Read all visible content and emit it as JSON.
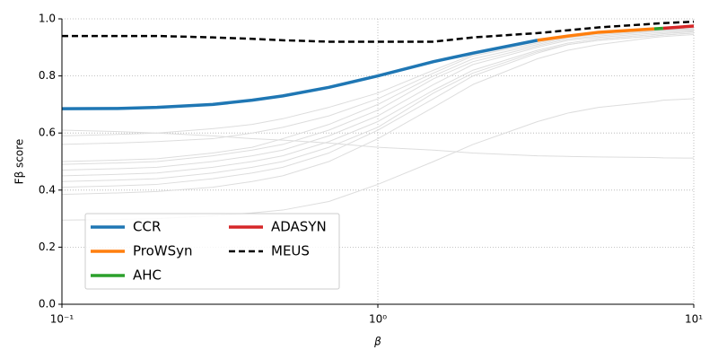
{
  "chart_data": {
    "type": "line",
    "x_label": "β",
    "y_label": "Fβ score",
    "x": [
      0.1,
      0.15,
      0.2,
      0.3,
      0.4,
      0.5,
      0.7,
      1,
      1.5,
      2,
      3.2,
      4,
      5,
      7.5,
      8,
      10
    ],
    "xlim": [
      0.1,
      10
    ],
    "x_scale": "log",
    "xticks": [
      {
        "value": 0.1,
        "label": "10⁻¹"
      },
      {
        "value": 1,
        "label": "10⁰"
      },
      {
        "value": 10,
        "label": "10¹"
      }
    ],
    "ylim": [
      0,
      1
    ],
    "yticks": [
      {
        "value": 0,
        "label": "0.0"
      },
      0.2,
      0.4,
      0.6,
      0.8,
      {
        "value": 1,
        "label": "1.0"
      }
    ],
    "grid": true,
    "legend": "lower left",
    "series": [
      {
        "color": "#dddddd",
        "values": [
          0.295,
          0.297,
          0.3,
          0.31,
          0.32,
          0.33,
          0.36,
          0.42,
          0.5,
          0.56,
          0.64,
          0.67,
          0.69,
          0.71,
          0.715,
          0.72
        ]
      },
      {
        "color": "#dddddd",
        "values": [
          0.61,
          0.605,
          0.6,
          0.59,
          0.58,
          0.575,
          0.565,
          0.55,
          0.54,
          0.53,
          0.52,
          0.518,
          0.516,
          0.514,
          0.513,
          0.512
        ]
      },
      {
        "color": "#dddddd",
        "values": [
          0.385,
          0.39,
          0.395,
          0.41,
          0.43,
          0.45,
          0.5,
          0.58,
          0.69,
          0.77,
          0.86,
          0.89,
          0.91,
          0.935,
          0.938,
          0.945
        ]
      },
      {
        "color": "#dddddd",
        "values": [
          0.41,
          0.415,
          0.42,
          0.44,
          0.46,
          0.48,
          0.53,
          0.61,
          0.72,
          0.8,
          0.88,
          0.91,
          0.925,
          0.94,
          0.943,
          0.95
        ]
      },
      {
        "color": "#dddddd",
        "values": [
          0.43,
          0.435,
          0.44,
          0.46,
          0.48,
          0.5,
          0.55,
          0.62,
          0.74,
          0.81,
          0.885,
          0.91,
          0.925,
          0.94,
          0.943,
          0.95
        ]
      },
      {
        "color": "#dddddd",
        "values": [
          0.45,
          0.455,
          0.46,
          0.48,
          0.5,
          0.52,
          0.57,
          0.64,
          0.75,
          0.82,
          0.89,
          0.915,
          0.93,
          0.945,
          0.948,
          0.955
        ]
      },
      {
        "color": "#dddddd",
        "values": [
          0.47,
          0.475,
          0.48,
          0.5,
          0.52,
          0.54,
          0.59,
          0.66,
          0.77,
          0.84,
          0.9,
          0.925,
          0.935,
          0.95,
          0.952,
          0.958
        ]
      },
      {
        "color": "#dddddd",
        "values": [
          0.49,
          0.495,
          0.5,
          0.52,
          0.54,
          0.56,
          0.61,
          0.68,
          0.79,
          0.85,
          0.905,
          0.93,
          0.94,
          0.955,
          0.957,
          0.962
        ]
      },
      {
        "color": "#dddddd",
        "values": [
          0.5,
          0.505,
          0.51,
          0.53,
          0.55,
          0.58,
          0.63,
          0.7,
          0.8,
          0.86,
          0.91,
          0.935,
          0.945,
          0.958,
          0.96,
          0.965
        ]
      },
      {
        "color": "#dddddd",
        "values": [
          0.56,
          0.565,
          0.57,
          0.58,
          0.6,
          0.62,
          0.66,
          0.72,
          0.81,
          0.87,
          0.915,
          0.94,
          0.95,
          0.96,
          0.962,
          0.967
        ]
      },
      {
        "color": "#dddddd",
        "values": [
          0.59,
          0.595,
          0.6,
          0.615,
          0.63,
          0.65,
          0.69,
          0.74,
          0.82,
          0.875,
          0.92,
          0.94,
          0.95,
          0.96,
          0.962,
          0.967
        ]
      },
      {
        "name": "CCR",
        "color": "#1f77b4",
        "width": 3.5,
        "values": [
          0.685,
          0.686,
          0.69,
          0.7,
          0.715,
          0.73,
          0.76,
          0.8,
          0.85,
          0.88,
          0.925,
          null,
          null,
          null,
          null,
          null
        ]
      },
      {
        "name": "ProWSyn",
        "color": "#ff7f0e",
        "width": 3.5,
        "values": [
          null,
          null,
          null,
          null,
          null,
          null,
          null,
          null,
          null,
          null,
          0.925,
          0.94,
          0.953,
          0.965,
          null,
          null
        ]
      },
      {
        "name": "AHC",
        "color": "#2ca02c",
        "width": 3.5,
        "values": [
          null,
          null,
          null,
          null,
          null,
          null,
          null,
          null,
          null,
          null,
          null,
          null,
          null,
          0.965,
          0.967,
          null
        ]
      },
      {
        "name": "ADASYN",
        "color": "#d62728",
        "width": 3.5,
        "values": [
          null,
          null,
          null,
          null,
          null,
          null,
          null,
          null,
          null,
          null,
          null,
          null,
          null,
          null,
          0.967,
          0.975
        ]
      },
      {
        "name": "MEUS",
        "color": "#000000",
        "width": 2.5,
        "linestyle": "dashed",
        "values": [
          0.94,
          0.94,
          0.94,
          0.935,
          0.93,
          0.925,
          0.92,
          0.92,
          0.92,
          0.935,
          0.95,
          0.96,
          0.97,
          0.983,
          0.985,
          0.99
        ]
      }
    ]
  }
}
